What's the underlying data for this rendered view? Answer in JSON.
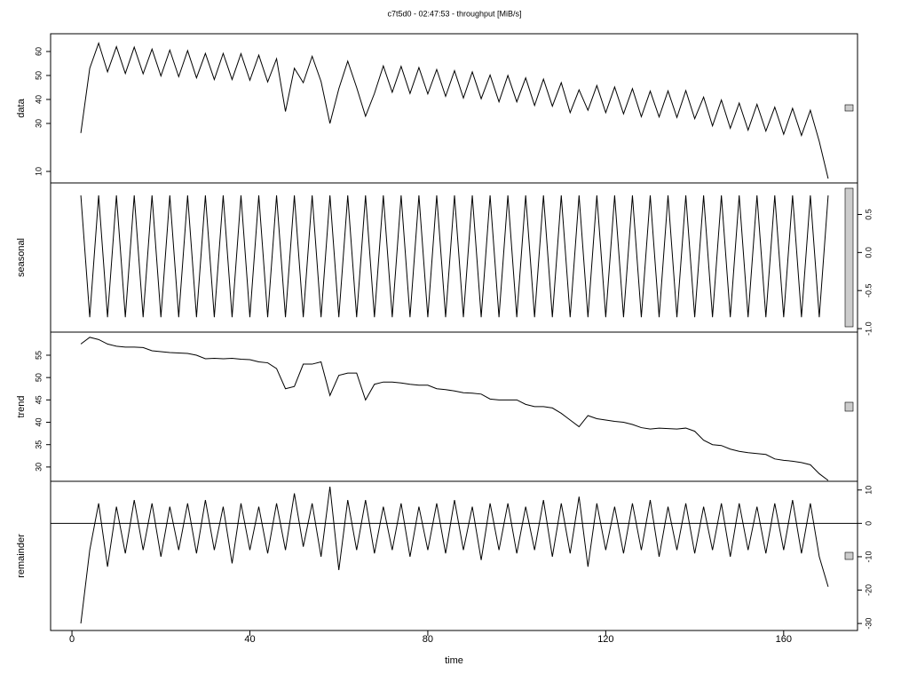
{
  "chart_data": [
    {
      "type": "line",
      "title": "c7t5d0 - 02:47:53 - throughput [MiB/s]",
      "ylabel": "data",
      "yaxis_side": "left",
      "color": "#000000",
      "xlim": [
        -4.8,
        176.6
      ],
      "ylim": [
        5.2,
        67.4
      ],
      "yticks": [
        10,
        30,
        40,
        50,
        60
      ],
      "x": [
        2,
        4,
        6,
        8,
        10,
        12,
        14,
        16,
        18,
        20,
        22,
        24,
        26,
        28,
        30,
        32,
        34,
        36,
        38,
        40,
        42,
        44,
        46,
        48,
        50,
        52,
        54,
        56,
        58,
        60,
        62,
        64,
        66,
        68,
        70,
        72,
        74,
        76,
        78,
        80,
        82,
        84,
        86,
        88,
        90,
        92,
        94,
        96,
        98,
        100,
        102,
        104,
        106,
        108,
        110,
        112,
        114,
        116,
        118,
        120,
        122,
        124,
        126,
        128,
        130,
        132,
        134,
        136,
        138,
        140,
        142,
        144,
        146,
        148,
        150,
        152,
        154,
        156,
        158,
        160,
        162,
        164,
        166,
        168,
        170
      ],
      "values": [
        26,
        53,
        63.5,
        51.5,
        62,
        50.8,
        61.8,
        50.7,
        61,
        49.8,
        60.6,
        49.5,
        60.4,
        49,
        59.2,
        48.3,
        59.2,
        48.3,
        59.1,
        48,
        58.5,
        47.3,
        57,
        35,
        53,
        47,
        58,
        47.5,
        30,
        44.5,
        56,
        45,
        33,
        42.5,
        54,
        43,
        53.8,
        42.5,
        53.3,
        42.3,
        52.5,
        41.3,
        52,
        40.6,
        51.5,
        40.3,
        50.2,
        39,
        50,
        39,
        49,
        37.5,
        48.5,
        37.2,
        47,
        34.5,
        44,
        35.5,
        45.8,
        34.5,
        45.2,
        34,
        44.5,
        32.8,
        43.5,
        32.7,
        43.6,
        32.5,
        43.7,
        32,
        41,
        29,
        39.8,
        28,
        38.5,
        27.2,
        38,
        26.8,
        36.8,
        25.5,
        36.3,
        25,
        35.5,
        22.5,
        7
      ]
    },
    {
      "type": "line",
      "ylabel": "seasonal",
      "yaxis_side": "right",
      "color": "#000000",
      "xlim": [
        -4.8,
        176.6
      ],
      "ylim": [
        -1.046,
        0.914
      ],
      "yticks": [
        {
          "value": -1,
          "label": "-1.0"
        },
        -0.5,
        {
          "value": 0,
          "label": "0.0"
        },
        0.5
      ],
      "x": [
        2,
        4,
        6,
        8,
        10,
        12,
        14,
        16,
        18,
        20,
        22,
        24,
        26,
        28,
        30,
        32,
        34,
        36,
        38,
        40,
        42,
        44,
        46,
        48,
        50,
        52,
        54,
        56,
        58,
        60,
        62,
        64,
        66,
        68,
        70,
        72,
        74,
        76,
        78,
        80,
        82,
        84,
        86,
        88,
        90,
        92,
        94,
        96,
        98,
        100,
        102,
        104,
        106,
        108,
        110,
        112,
        114,
        116,
        118,
        120,
        122,
        124,
        126,
        128,
        130,
        132,
        134,
        136,
        138,
        140,
        142,
        144,
        146,
        148,
        150,
        152,
        154,
        156,
        158,
        160,
        162,
        164,
        166,
        168,
        170
      ],
      "values": [
        0.75,
        -0.85,
        0.75,
        -0.85,
        0.75,
        -0.85,
        0.75,
        -0.85,
        0.75,
        -0.85,
        0.75,
        -0.85,
        0.75,
        -0.85,
        0.75,
        -0.85,
        0.75,
        -0.85,
        0.75,
        -0.85,
        0.75,
        -0.85,
        0.75,
        -0.85,
        0.75,
        -0.85,
        0.75,
        -0.85,
        0.75,
        -0.85,
        0.75,
        -0.85,
        0.75,
        -0.85,
        0.75,
        -0.85,
        0.75,
        -0.85,
        0.75,
        -0.85,
        0.75,
        -0.85,
        0.75,
        -0.85,
        0.75,
        -0.85,
        0.75,
        -0.85,
        0.75,
        -0.85,
        0.75,
        -0.85,
        0.75,
        -0.85,
        0.75,
        -0.85,
        0.75,
        -0.85,
        0.75,
        -0.85,
        0.75,
        -0.85,
        0.75,
        -0.85,
        0.75,
        -0.85,
        0.75,
        -0.85,
        0.75,
        -0.85,
        0.75,
        -0.85,
        0.75,
        -0.85,
        0.75,
        -0.85,
        0.75,
        -0.85,
        0.75,
        -0.85,
        0.75,
        -0.85,
        0.75,
        -0.85,
        0.75
      ]
    },
    {
      "type": "line",
      "ylabel": "trend",
      "yaxis_side": "left",
      "color": "#000000",
      "xlim": [
        -4.8,
        176.6
      ],
      "ylim": [
        26.8,
        60.16
      ],
      "yticks": [
        30,
        35,
        40,
        45,
        50,
        55
      ],
      "x": [
        2,
        4,
        6,
        8,
        10,
        12,
        14,
        16,
        18,
        20,
        22,
        24,
        26,
        28,
        30,
        32,
        34,
        36,
        38,
        40,
        42,
        44,
        46,
        48,
        50,
        52,
        54,
        56,
        58,
        60,
        62,
        64,
        66,
        68,
        70,
        72,
        74,
        76,
        78,
        80,
        82,
        84,
        86,
        88,
        90,
        92,
        94,
        96,
        98,
        100,
        102,
        104,
        106,
        108,
        110,
        112,
        114,
        116,
        118,
        120,
        122,
        124,
        126,
        128,
        130,
        132,
        134,
        136,
        138,
        140,
        142,
        144,
        146,
        148,
        150,
        152,
        154,
        156,
        158,
        160,
        162,
        164,
        166,
        168,
        170
      ],
      "values": [
        57.5,
        59,
        58.5,
        57.5,
        57,
        56.8,
        56.8,
        56.7,
        56,
        55.8,
        55.6,
        55.5,
        55.4,
        55,
        54.2,
        54.3,
        54.2,
        54.3,
        54.1,
        54,
        53.5,
        53.3,
        52,
        47.5,
        48,
        53,
        53,
        53.5,
        46,
        50.5,
        51,
        51,
        45,
        48.5,
        49,
        49,
        48.8,
        48.5,
        48.3,
        48.3,
        47.5,
        47.3,
        47,
        46.6,
        46.5,
        46.3,
        45.2,
        45,
        45,
        45,
        44,
        43.5,
        43.5,
        43.2,
        42,
        40.5,
        39,
        41.5,
        40.8,
        40.5,
        40.2,
        40,
        39.5,
        38.8,
        38.5,
        38.7,
        38.6,
        38.5,
        38.7,
        38,
        36,
        35,
        34.8,
        34,
        33.5,
        33.2,
        33,
        32.8,
        31.8,
        31.5,
        31.3,
        31,
        30.5,
        28.5,
        27
      ]
    },
    {
      "type": "line",
      "ylabel": "remainder",
      "xlabel": "time",
      "yaxis_side": "right",
      "color": "#000000",
      "hline": 0,
      "xlim": [
        -4.8,
        176.6
      ],
      "ylim": [
        -32.1,
        12.6
      ],
      "yticks": [
        -30,
        -20,
        -10,
        0,
        10
      ],
      "xticks": [
        0,
        40,
        80,
        120,
        160
      ],
      "x": [
        2,
        4,
        6,
        8,
        10,
        12,
        14,
        16,
        18,
        20,
        22,
        24,
        26,
        28,
        30,
        32,
        34,
        36,
        38,
        40,
        42,
        44,
        46,
        48,
        50,
        52,
        54,
        56,
        58,
        60,
        62,
        64,
        66,
        68,
        70,
        72,
        74,
        76,
        78,
        80,
        82,
        84,
        86,
        88,
        90,
        92,
        94,
        96,
        98,
        100,
        102,
        104,
        106,
        108,
        110,
        112,
        114,
        116,
        118,
        120,
        122,
        124,
        126,
        128,
        130,
        132,
        134,
        136,
        138,
        140,
        142,
        144,
        146,
        148,
        150,
        152,
        154,
        156,
        158,
        160,
        162,
        164,
        166,
        168,
        170
      ],
      "values": [
        -30,
        -8,
        6,
        -13,
        5,
        -9,
        7,
        -8,
        6,
        -10,
        5,
        -8,
        6,
        -9,
        7,
        -8,
        5,
        -12,
        6,
        -8,
        5,
        -9,
        6,
        -8,
        9,
        -7,
        6,
        -10,
        11,
        -14,
        7,
        -8,
        7,
        -9,
        5,
        -8,
        6,
        -10,
        5,
        -8,
        6,
        -9,
        7,
        -8,
        5,
        -11,
        6,
        -8,
        6,
        -9,
        5,
        -8,
        7,
        -10,
        6,
        -9,
        8,
        -13,
        6,
        -8,
        5,
        -9,
        6,
        -8,
        7,
        -10,
        5,
        -8,
        6,
        -9,
        5,
        -8,
        6,
        -10,
        6,
        -8,
        5,
        -9,
        6,
        -8,
        7,
        -9,
        6,
        -10,
        -19
      ]
    }
  ]
}
